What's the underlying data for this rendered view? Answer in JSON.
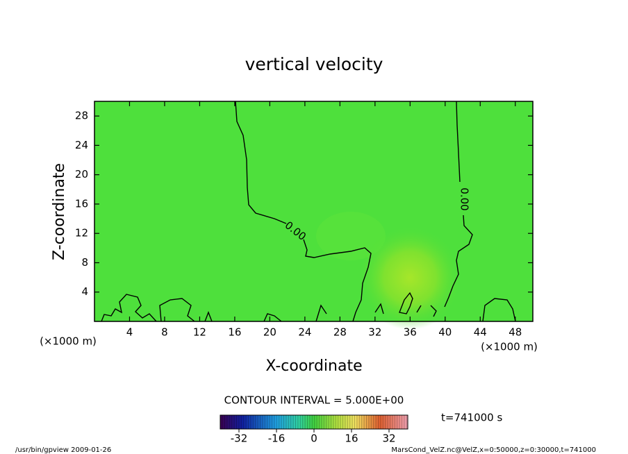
{
  "chart_data": {
    "type": "contour",
    "title": "vertical velocity",
    "xlabel": "X-coordinate",
    "ylabel": "Z-coordinate",
    "x_unit": "(×1000 m)",
    "y_unit": "(×1000 m)",
    "xlim": [
      0,
      50
    ],
    "xticks": [
      4,
      8,
      12,
      16,
      20,
      24,
      28,
      32,
      36,
      40,
      44,
      48
    ],
    "ylim": [
      0,
      30
    ],
    "yticks": [
      4,
      8,
      12,
      16,
      20,
      24,
      28
    ],
    "contours": [
      {
        "value": 0,
        "label": "0.00"
      }
    ],
    "contour_interval": "CONTOUR INTERVAL = 5.000E+00",
    "time_label": "t=741000 s",
    "colorbar": {
      "lim": [
        -40,
        40
      ],
      "ticks": [
        -32,
        -16,
        0,
        16,
        32
      ]
    },
    "footer_left": "/usr/bin/gpview  2009-01-26",
    "footer_right": "MarsCond_VelZ.nc@VelZ,x=0:50000,z=0:30000,t=741000"
  }
}
